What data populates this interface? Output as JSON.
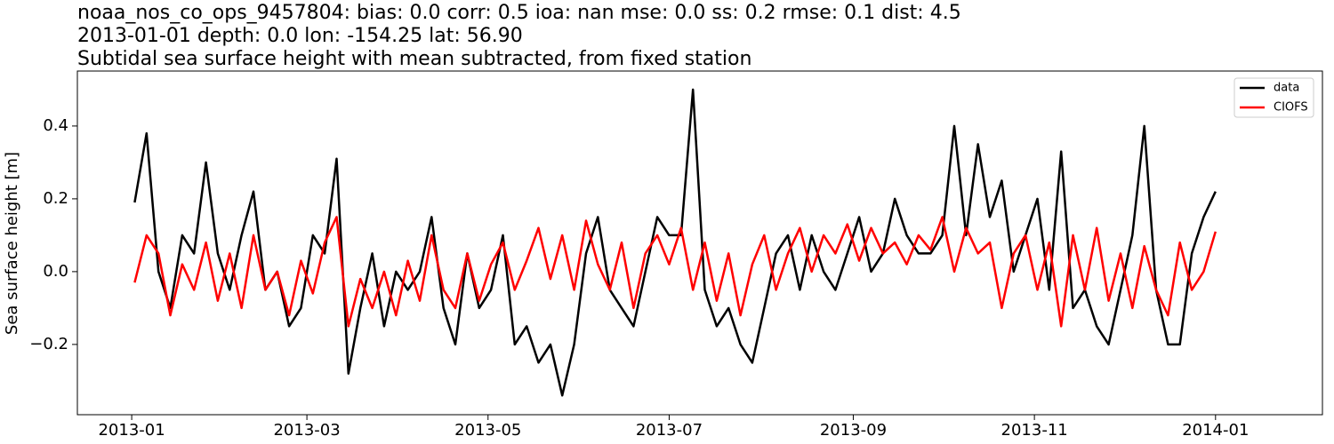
{
  "chart_data": {
    "type": "line",
    "title_lines": [
      "noaa_nos_co_ops_9457804: bias: 0.0  corr: 0.5  ioa: nan  mse: 0.0  ss: 0.2  rmse: 0.1  dist: 4.5",
      "2013-01-01 depth: 0.0 lon: -154.25 lat: 56.90",
      "Subtidal sea surface height with mean subtracted, from fixed station"
    ],
    "y_label": "Sea surface height [m]",
    "x": [
      1,
      5,
      9,
      13,
      17,
      21,
      25,
      29,
      33,
      37,
      41,
      45,
      49,
      53,
      57,
      61,
      65,
      69,
      73,
      77,
      81,
      85,
      89,
      93,
      97,
      101,
      105,
      109,
      113,
      117,
      121,
      125,
      129,
      133,
      137,
      141,
      145,
      149,
      153,
      157,
      161,
      165,
      169,
      173,
      177,
      181,
      185,
      189,
      193,
      197,
      201,
      205,
      209,
      213,
      217,
      221,
      225,
      229,
      233,
      237,
      241,
      245,
      249,
      253,
      257,
      261,
      265,
      269,
      273,
      277,
      281,
      285,
      289,
      293,
      297,
      301,
      305,
      309,
      313,
      317,
      321,
      325,
      329,
      333,
      337,
      341,
      345,
      349,
      353,
      357,
      361,
      365
    ],
    "series": [
      {
        "name": "data",
        "color": "#000000",
        "values": [
          0.19,
          0.38,
          0.0,
          -0.1,
          0.1,
          0.05,
          0.3,
          0.05,
          -0.05,
          0.1,
          0.22,
          -0.05,
          0.0,
          -0.15,
          -0.1,
          0.1,
          0.05,
          0.31,
          -0.28,
          -0.1,
          0.05,
          -0.15,
          0.0,
          -0.05,
          0.0,
          0.15,
          -0.1,
          -0.2,
          0.05,
          -0.1,
          -0.05,
          0.1,
          -0.2,
          -0.15,
          -0.25,
          -0.2,
          -0.34,
          -0.2,
          0.05,
          0.15,
          -0.05,
          -0.1,
          -0.15,
          0.0,
          0.15,
          0.1,
          0.1,
          0.5,
          -0.05,
          -0.15,
          -0.1,
          -0.2,
          -0.25,
          -0.1,
          0.05,
          0.1,
          -0.05,
          0.1,
          0.0,
          -0.05,
          0.05,
          0.15,
          0.0,
          0.05,
          0.2,
          0.1,
          0.05,
          0.05,
          0.1,
          0.4,
          0.1,
          0.35,
          0.15,
          0.25,
          0.0,
          0.1,
          0.2,
          -0.05,
          0.33,
          -0.1,
          -0.05,
          -0.15,
          -0.2,
          -0.05,
          0.1,
          0.4,
          -0.05,
          -0.2,
          -0.2,
          0.05,
          0.15,
          0.22
        ]
      },
      {
        "name": "CIOFS",
        "color": "#ff0000",
        "values": [
          -0.03,
          0.1,
          0.05,
          -0.12,
          0.02,
          -0.05,
          0.08,
          -0.08,
          0.05,
          -0.1,
          0.1,
          -0.05,
          0.0,
          -0.12,
          0.03,
          -0.06,
          0.08,
          0.15,
          -0.15,
          -0.02,
          -0.1,
          0.0,
          -0.12,
          0.03,
          -0.08,
          0.1,
          -0.05,
          -0.1,
          0.05,
          -0.08,
          0.02,
          0.08,
          -0.05,
          0.03,
          0.12,
          -0.02,
          0.1,
          -0.05,
          0.14,
          0.02,
          -0.05,
          0.08,
          -0.1,
          0.05,
          0.1,
          0.02,
          0.12,
          -0.05,
          0.08,
          -0.08,
          0.05,
          -0.12,
          0.02,
          0.1,
          -0.05,
          0.05,
          0.12,
          0.0,
          0.1,
          0.05,
          0.13,
          0.03,
          0.12,
          0.05,
          0.08,
          0.02,
          0.1,
          0.06,
          0.15,
          0.0,
          0.12,
          0.05,
          0.08,
          -0.1,
          0.05,
          0.1,
          -0.05,
          0.08,
          -0.15,
          0.1,
          -0.05,
          0.12,
          -0.08,
          0.05,
          -0.1,
          0.07,
          -0.05,
          -0.12,
          0.08,
          -0.05,
          0.0,
          0.11
        ]
      }
    ],
    "xlim": [
      -18.3,
      401
    ],
    "xticks": [
      {
        "value": 0,
        "label": "2013-01"
      },
      {
        "value": 59,
        "label": "2013-03"
      },
      {
        "value": 120,
        "label": "2013-05"
      },
      {
        "value": 181,
        "label": "2013-07"
      },
      {
        "value": 243,
        "label": "2013-09"
      },
      {
        "value": 304,
        "label": "2013-11"
      },
      {
        "value": 365,
        "label": "2014-01"
      }
    ],
    "ylim": [
      -0.393,
      0.551
    ],
    "yticks": [
      {
        "value": -0.2,
        "label": "−0.2"
      },
      {
        "value": 0,
        "label": "0.0"
      },
      0.2,
      0.4
    ],
    "legend": "upper right"
  }
}
